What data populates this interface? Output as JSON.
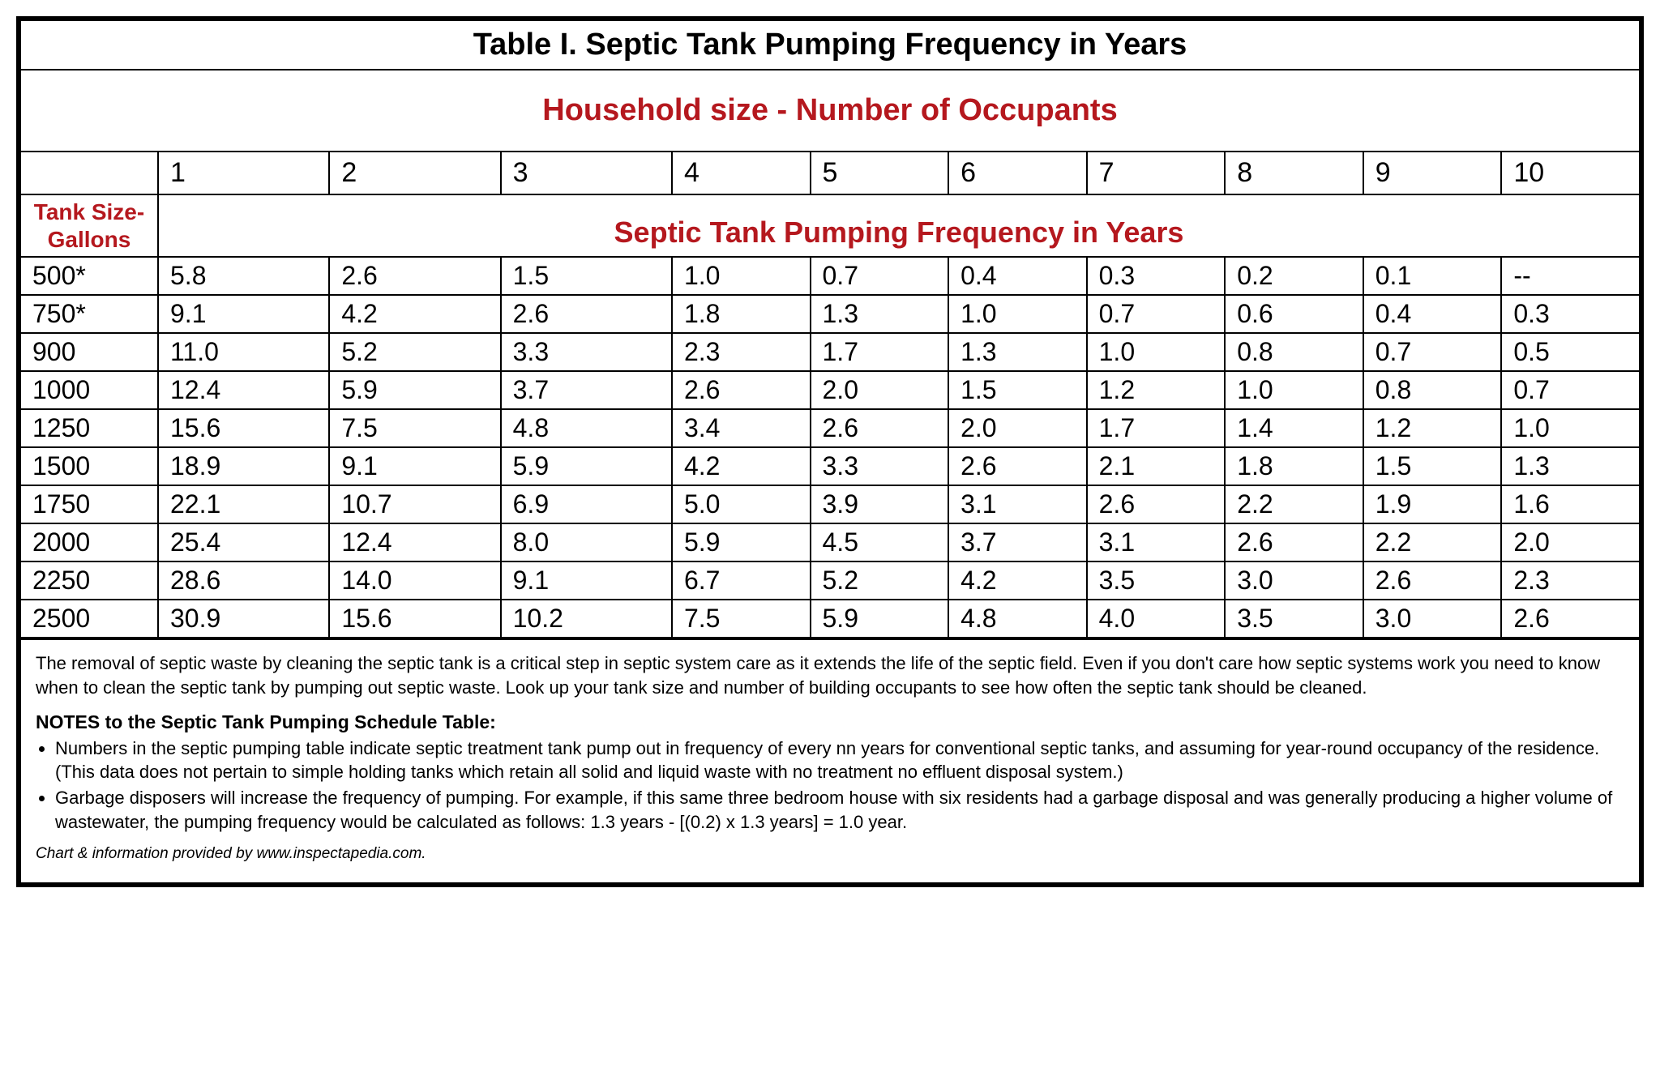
{
  "title": "Table I. Septic Tank Pumping Frequency in Years",
  "subtitle": "Household size - Number of Occupants",
  "tank_label_line1": "Tank Size-",
  "tank_label_line2": "Gallons",
  "freq_label": "Septic Tank Pumping Frequency in Years",
  "columns": [
    "1",
    "2",
    "3",
    "4",
    "5",
    "6",
    "7",
    "8",
    "9",
    "10"
  ],
  "rows": [
    {
      "label": "500*",
      "cells": [
        "5.8",
        "2.6",
        "1.5",
        "1.0",
        "0.7",
        "0.4",
        "0.3",
        "0.2",
        "0.1",
        "--"
      ]
    },
    {
      "label": "750*",
      "cells": [
        "9.1",
        "4.2",
        "2.6",
        "1.8",
        "1.3",
        "1.0",
        "0.7",
        "0.6",
        "0.4",
        "0.3"
      ]
    },
    {
      "label": "900",
      "cells": [
        "11.0",
        "5.2",
        "3.3",
        "2.3",
        "1.7",
        "1.3",
        "1.0",
        "0.8",
        "0.7",
        "0.5"
      ]
    },
    {
      "label": "1000",
      "cells": [
        "12.4",
        "5.9",
        "3.7",
        "2.6",
        "2.0",
        "1.5",
        "1.2",
        "1.0",
        "0.8",
        "0.7"
      ]
    },
    {
      "label": "1250",
      "cells": [
        "15.6",
        "7.5",
        "4.8",
        "3.4",
        "2.6",
        "2.0",
        "1.7",
        "1.4",
        "1.2",
        "1.0"
      ]
    },
    {
      "label": "1500",
      "cells": [
        "18.9",
        "9.1",
        "5.9",
        "4.2",
        "3.3",
        "2.6",
        "2.1",
        "1.8",
        "1.5",
        "1.3"
      ]
    },
    {
      "label": "1750",
      "cells": [
        "22.1",
        "10.7",
        "6.9",
        "5.0",
        "3.9",
        "3.1",
        "2.6",
        "2.2",
        "1.9",
        "1.6"
      ]
    },
    {
      "label": "2000",
      "cells": [
        "25.4",
        "12.4",
        "8.0",
        "5.9",
        "4.5",
        "3.7",
        "3.1",
        "2.6",
        "2.2",
        "2.0"
      ]
    },
    {
      "label": "2250",
      "cells": [
        "28.6",
        "14.0",
        "9.1",
        "6.7",
        "5.2",
        "4.2",
        "3.5",
        "3.0",
        "2.6",
        "2.3"
      ]
    },
    {
      "label": "2500",
      "cells": [
        "30.9",
        "15.6",
        "10.2",
        "7.5",
        "5.9",
        "4.8",
        "4.0",
        "3.5",
        "3.0",
        "2.6"
      ]
    }
  ],
  "intro_text": "The removal of septic waste by cleaning the septic tank is a critical step in septic system care as it extends the life of the septic field. Even if you don't care how septic systems work you need to know when to clean the septic tank by pumping out septic waste. Look up your tank size and number of building  occupants to see how often the septic tank should be cleaned.",
  "notes_title": "NOTES to the Septic Tank Pumping Schedule Table:",
  "notes": [
    "Numbers in the septic pumping table indicate septic treatment tank pump out in frequency of every nn years for conventional septic tanks, and assuming for year-round occupancy of the residence. (This data does not pertain to simple holding tanks which retain all solid and liquid waste with no treatment no effluent disposal system.)",
    "Garbage disposers will increase the frequency of pumping. For example, if this same three bedroom house with six residents had a garbage disposal and was generally producing a higher volume of wastewater, the pumping frequency would be calculated as follows: 1.3 years - [(0.2) x 1.3 years] = 1.0 year."
  ],
  "credit": "Chart & information provided by www.inspectapedia.com.",
  "colors": {
    "accent": "#b5181e",
    "text": "#000000",
    "border": "#000000",
    "background": "#ffffff"
  },
  "typography": {
    "title_fontsize": 38,
    "subtitle_fontsize": 38,
    "header_fontsize": 34,
    "data_fontsize": 32,
    "notes_fontsize": 22
  }
}
